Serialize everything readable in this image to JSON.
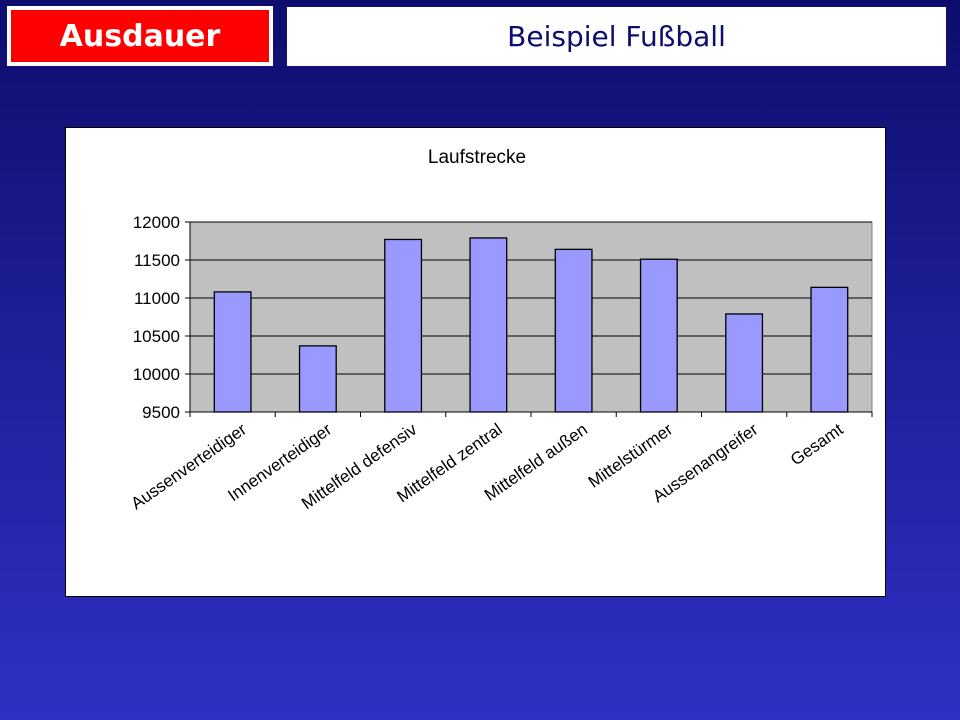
{
  "header": {
    "section_label": "Ausdauer",
    "title": "Beispiel Fußball"
  },
  "colors": {
    "section_bg": "#ff0000",
    "bar_fill": "#9999ff",
    "plot_bg": "#c0c0c0"
  },
  "chart_data": {
    "type": "bar",
    "title": "Laufstrecke",
    "categories": [
      "Aussenverteidiger",
      "Innenverteidiger",
      "Mittelfeld defensiv",
      "Mittelfeld zentral",
      "Mittelfeld außen",
      "Mittelstürmer",
      "Aussenangreifer",
      "Gesamt"
    ],
    "values": [
      11080,
      10370,
      11770,
      11790,
      11640,
      11510,
      10790,
      11140
    ],
    "ylim": [
      9500,
      12000
    ],
    "yticks": [
      9500,
      10000,
      10500,
      11000,
      11500,
      12000
    ],
    "grid": true,
    "legend": false
  }
}
